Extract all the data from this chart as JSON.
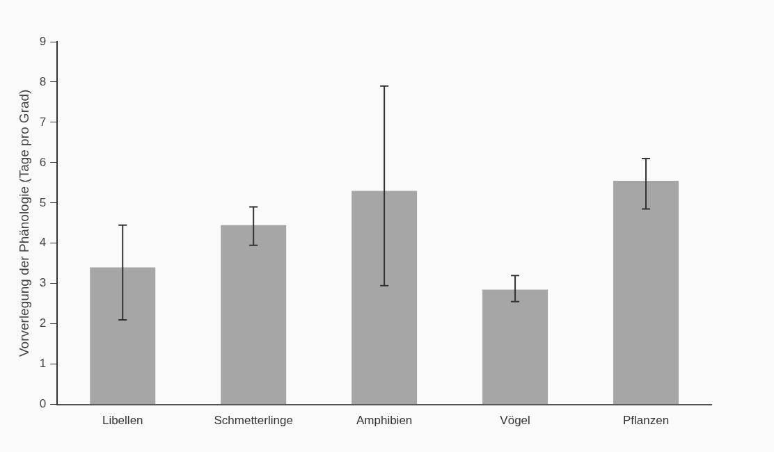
{
  "chart_data": {
    "type": "bar",
    "ylabel": "Vorverlegung der Phänologie (Tage pro Grad)",
    "categories": [
      "Libellen",
      "Schmetterlinge",
      "Amphibien",
      "Vögel",
      "Pflanzen"
    ],
    "values": [
      3.4,
      4.45,
      5.3,
      2.85,
      5.55
    ],
    "errors": [
      [
        2.1,
        4.45
      ],
      [
        3.95,
        4.9
      ],
      [
        2.95,
        7.9
      ],
      [
        2.55,
        3.2
      ],
      [
        4.85,
        6.1
      ]
    ],
    "color": "#a6a6a6",
    "ylim": [
      0,
      9
    ],
    "yticks": [
      0,
      1,
      2,
      3,
      4,
      5,
      6,
      7,
      8,
      9
    ]
  }
}
